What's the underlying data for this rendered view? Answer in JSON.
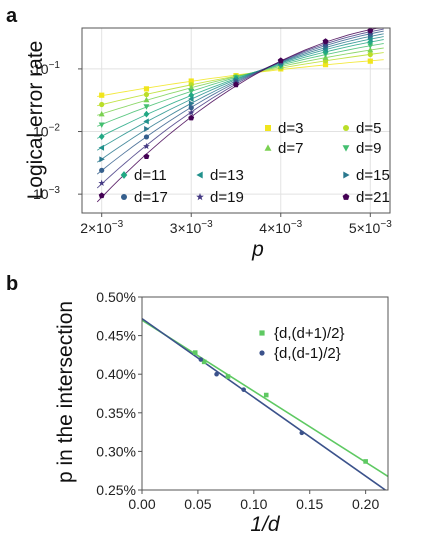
{
  "figure": {
    "panel_a_label": "a",
    "panel_b_label": "b"
  },
  "chart_data": [
    {
      "type": "scatter",
      "panel": "a",
      "title": "",
      "xlabel": "p",
      "ylabel": "Logical error rate",
      "xlim": [
        0.00178,
        0.00522
      ],
      "ylim": [
        0.0005,
        0.45
      ],
      "y_scale": "log",
      "x_ticks": [
        {
          "value": 0.002,
          "base": "2×10",
          "exp": "−3"
        },
        {
          "value": 0.003,
          "base": "3×10",
          "exp": "−3"
        },
        {
          "value": 0.004,
          "base": "4×10",
          "exp": "−3"
        },
        {
          "value": 0.005,
          "base": "5×10",
          "exp": "−3"
        }
      ],
      "y_ticks": [
        {
          "value": 0.001,
          "base": "10",
          "exp": "−3"
        },
        {
          "value": 0.01,
          "base": "10",
          "exp": "−2"
        },
        {
          "value": 0.1,
          "base": "10",
          "exp": "−1"
        }
      ],
      "grid": true,
      "legend_position": "bottom-right",
      "x": [
        0.002,
        0.0025,
        0.003,
        0.0035,
        0.004,
        0.0045,
        0.005
      ],
      "series": [
        {
          "name": "d=3",
          "color": "#f1e51d",
          "marker": "square",
          "values": [
            0.038,
            0.048,
            0.064,
            0.078,
            0.1,
            0.117,
            0.133
          ]
        },
        {
          "name": "d=5",
          "color": "#bade28",
          "marker": "circle",
          "values": [
            0.027,
            0.039,
            0.056,
            0.076,
            0.104,
            0.135,
            0.17
          ]
        },
        {
          "name": "d=7",
          "color": "#7ad151",
          "marker": "triangle",
          "values": [
            0.019,
            0.032,
            0.05,
            0.075,
            0.109,
            0.152,
            0.2
          ]
        },
        {
          "name": "d=9",
          "color": "#44bf70",
          "marker": "tri-down",
          "values": [
            0.0128,
            0.025,
            0.044,
            0.073,
            0.113,
            0.17,
            0.235
          ]
        },
        {
          "name": "d=11",
          "color": "#22a884",
          "marker": "diamond",
          "values": [
            0.0083,
            0.019,
            0.038,
            0.07,
            0.116,
            0.188,
            0.27
          ]
        },
        {
          "name": "d=13",
          "color": "#21918c",
          "marker": "tri-left",
          "values": [
            0.0055,
            0.0145,
            0.033,
            0.068,
            0.12,
            0.205,
            0.3
          ]
        },
        {
          "name": "d=15",
          "color": "#2a788e",
          "marker": "tri-right",
          "values": [
            0.0036,
            0.011,
            0.028,
            0.065,
            0.124,
            0.222,
            0.33
          ]
        },
        {
          "name": "d=17",
          "color": "#355f8d",
          "marker": "circle",
          "values": [
            0.0024,
            0.0082,
            0.024,
            0.062,
            0.128,
            0.24,
            0.36
          ]
        },
        {
          "name": "d=19",
          "color": "#443983",
          "marker": "star",
          "values": [
            0.0015,
            0.0058,
            0.02,
            0.059,
            0.132,
            0.257,
            0.385
          ]
        },
        {
          "name": "d=21",
          "color": "#440154",
          "marker": "pentagon",
          "values": [
            0.00095,
            0.004,
            0.0165,
            0.056,
            0.136,
            0.275,
            0.41
          ]
        }
      ]
    },
    {
      "type": "scatter",
      "panel": "b",
      "title": "",
      "xlabel": "1/d",
      "ylabel": "p in the intersection",
      "xlim": [
        0.0,
        0.22
      ],
      "ylim": [
        0.25,
        0.5
      ],
      "grid": false,
      "legend_position": "top-right",
      "x_ticks": [
        "0.00",
        "0.05",
        "0.10",
        "0.15",
        "0.20"
      ],
      "y_ticks": [
        "0.25%",
        "0.30%",
        "0.35%",
        "0.40%",
        "0.45%",
        "0.50%"
      ],
      "series": [
        {
          "name": "{d,(d+1)/2}",
          "color": "#5ec962",
          "marker": "square",
          "x": [
            0.0476,
            0.0556,
            0.0769,
            0.1111,
            0.2
          ],
          "y": [
            0.428,
            0.416,
            0.397,
            0.373,
            0.287
          ],
          "fit": {
            "intercept": 0.47,
            "slope": -0.92
          }
        },
        {
          "name": "{d,(d-1)/2}",
          "color": "#3b528b",
          "marker": "circle",
          "x": [
            0.0526,
            0.0667,
            0.0909,
            0.1429
          ],
          "y": [
            0.419,
            0.4,
            0.38,
            0.324
          ],
          "fit": {
            "intercept": 0.472,
            "slope": -1.02
          }
        }
      ]
    }
  ]
}
